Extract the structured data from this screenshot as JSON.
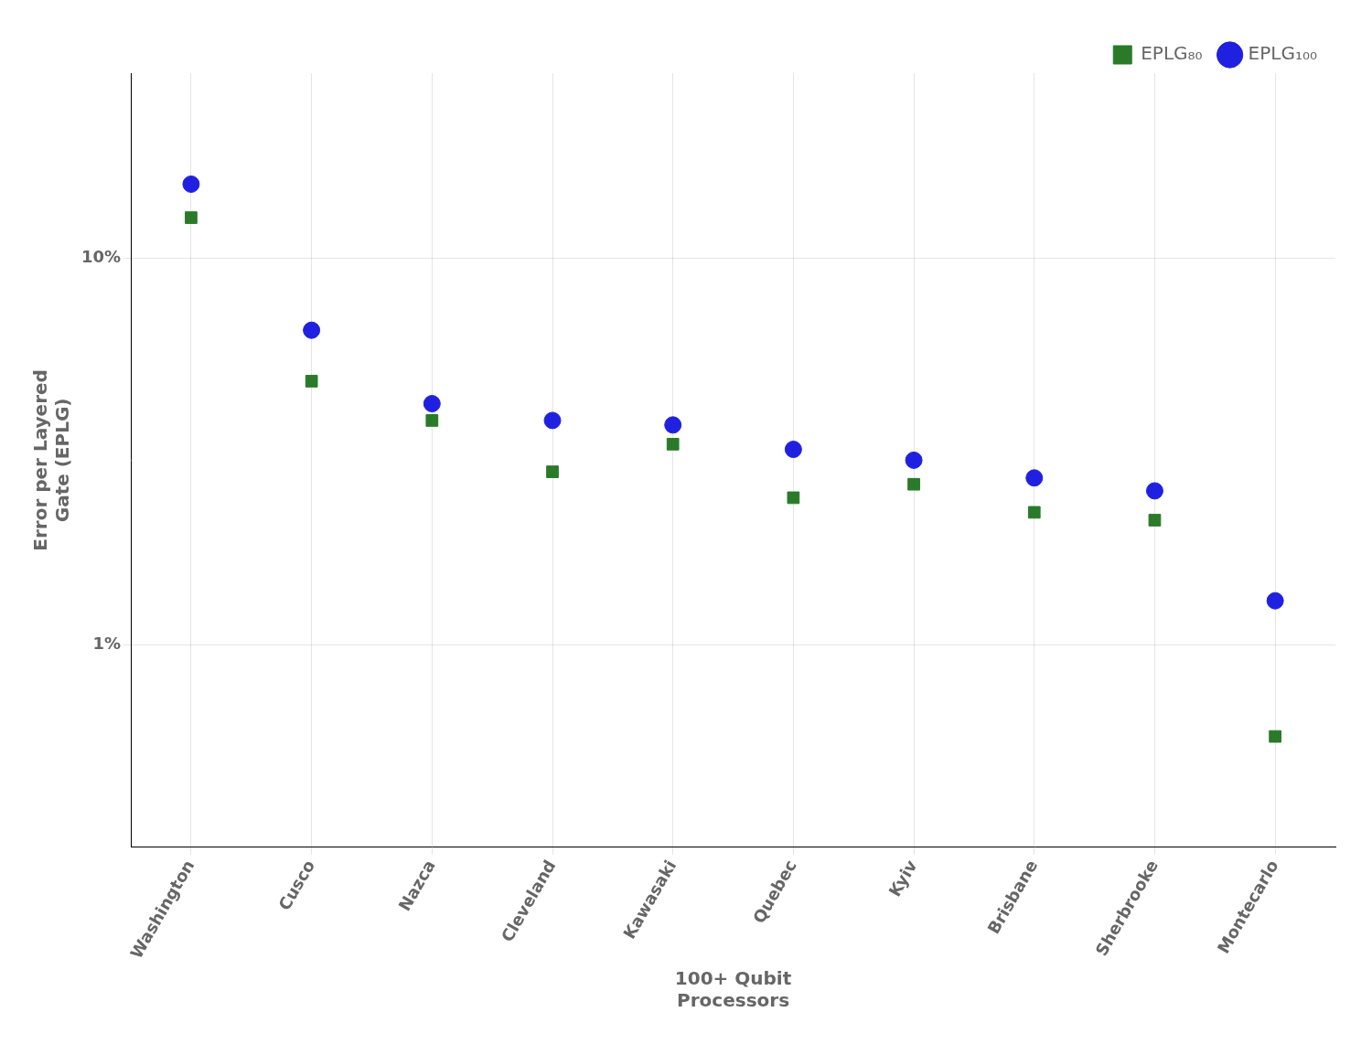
{
  "chart_data": {
    "type": "scatter",
    "xlabel": "100+ Qubit\nProcessors",
    "ylabel": "Error per Layered\nGate (EPLG)",
    "categories": [
      "Washington",
      "Cusco",
      "Nazca",
      "Cleveland",
      "Kawasaki",
      "Quebec",
      "Kyiv",
      "Brisbane",
      "Sherbrooke",
      "Montecarlo"
    ],
    "series": [
      {
        "name": "EPLG₈₀",
        "color": "#2a7a2a",
        "marker": "square",
        "values": [
          0.127,
          0.048,
          0.038,
          0.028,
          0.033,
          0.024,
          0.026,
          0.022,
          0.021,
          0.0058
        ]
      },
      {
        "name": "EPLG₁₀₀",
        "color": "#2020e0",
        "marker": "circle",
        "values": [
          0.155,
          0.065,
          0.042,
          0.038,
          0.037,
          0.032,
          0.03,
          0.027,
          0.025,
          0.013
        ]
      }
    ],
    "log": "y",
    "ylim": [
      0.003,
      0.3
    ],
    "yticks": [
      {
        "value": 0.01,
        "label": "1%"
      },
      {
        "value": 0.1,
        "label": "10%"
      }
    ],
    "grid": true,
    "legend": "upper right"
  }
}
